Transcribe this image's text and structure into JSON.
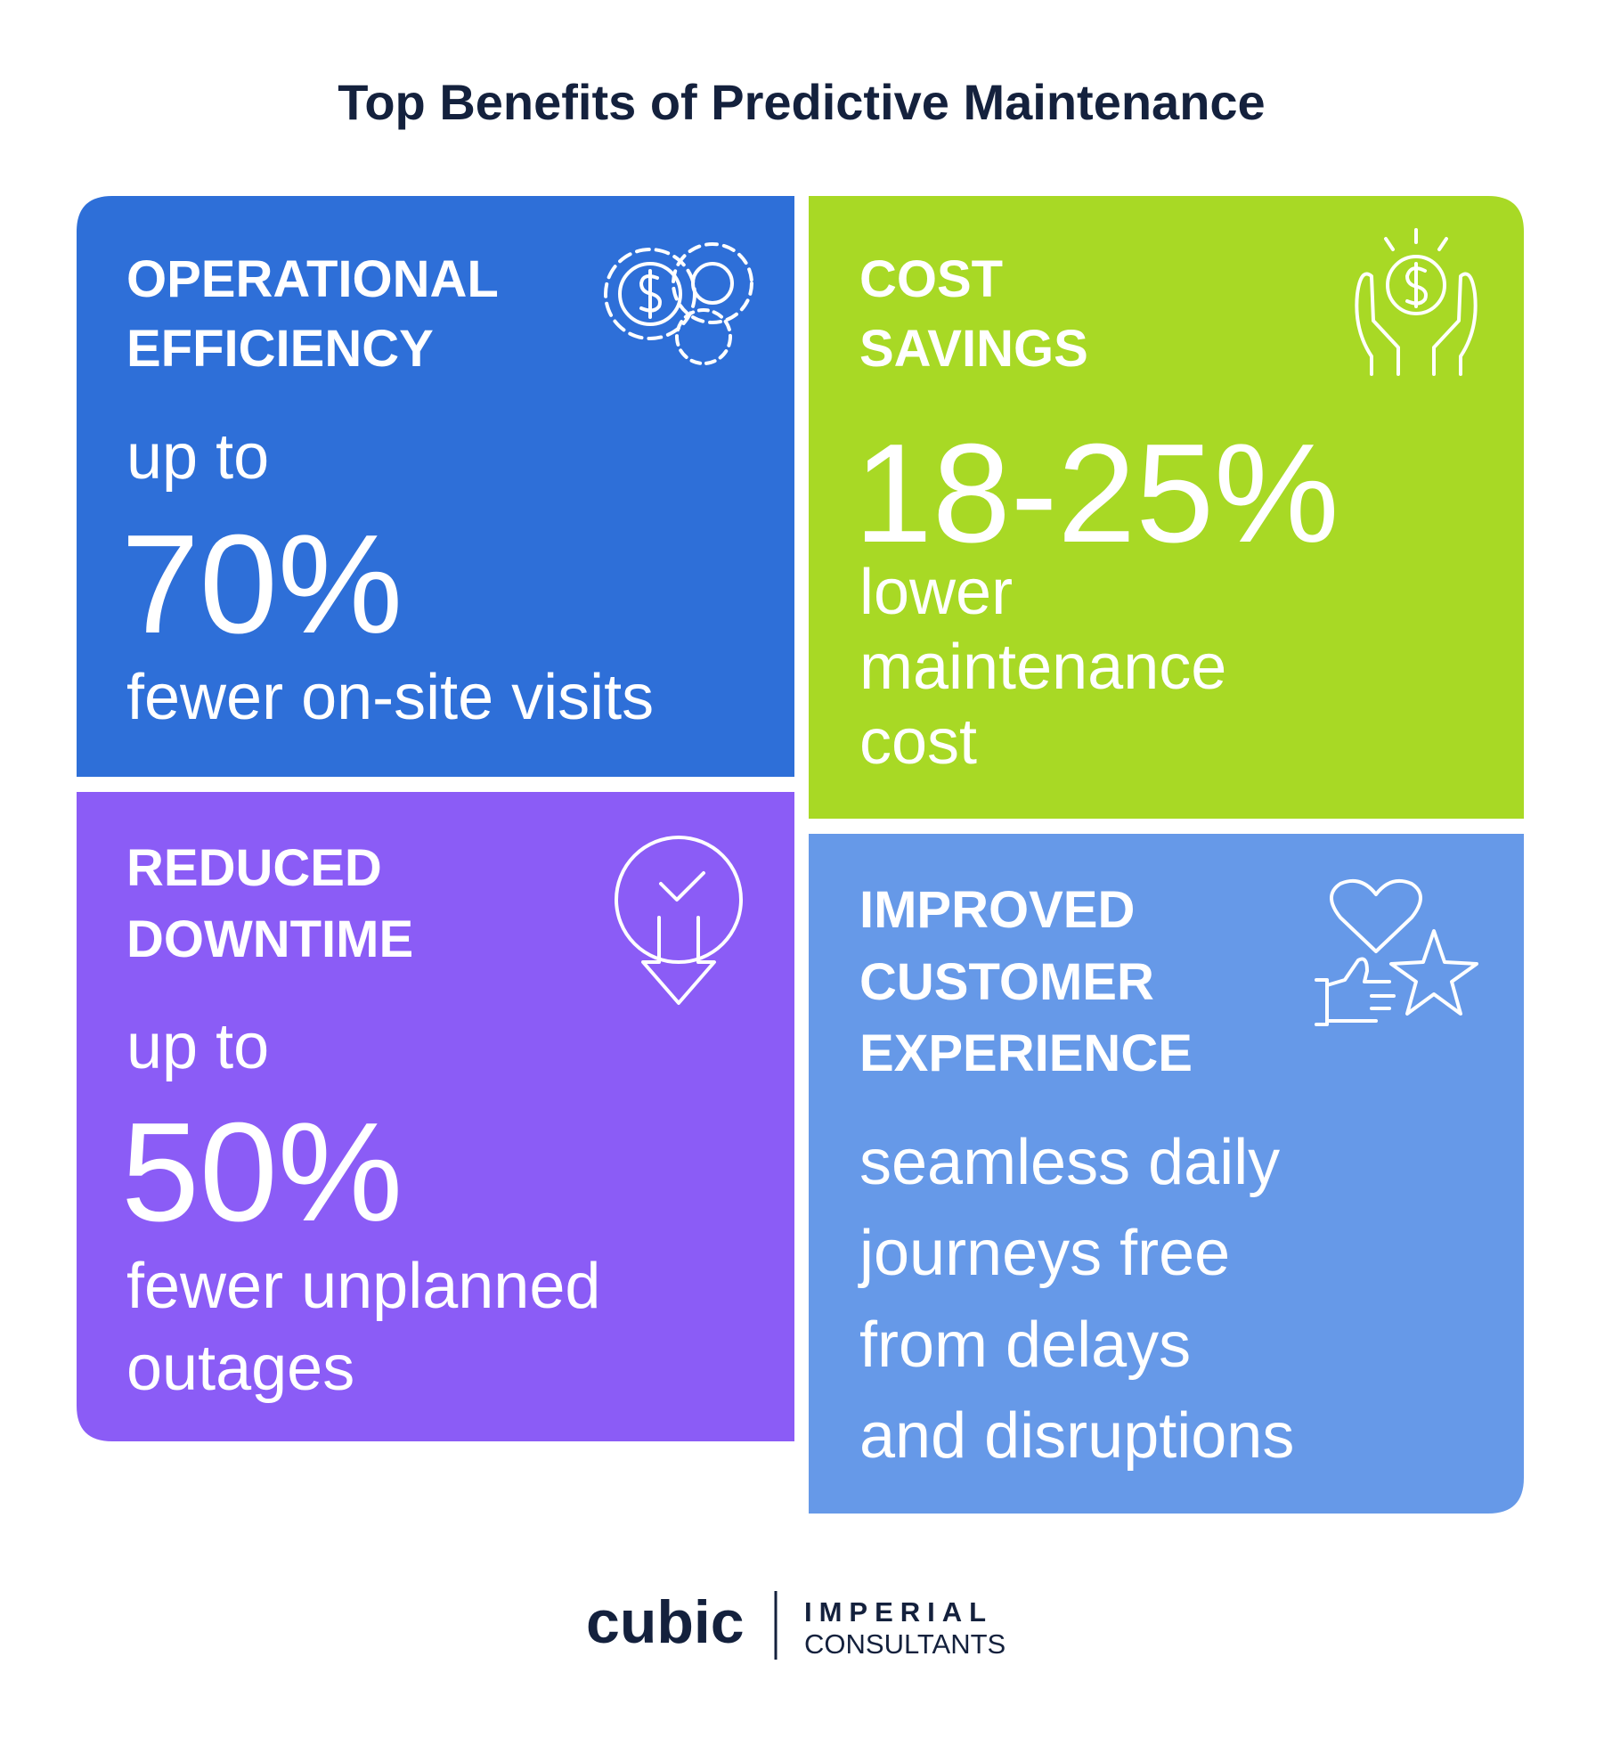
{
  "title": "Top Benefits of Predictive Maintenance",
  "cards": [
    {
      "heading": [
        "OPERATIONAL",
        "EFFICIENCY"
      ],
      "prefix": "up to",
      "stat": "70%",
      "description": [
        "fewer on-site visits"
      ]
    },
    {
      "heading": [
        "COST",
        "SAVINGS"
      ],
      "stat": "18-25%",
      "description": [
        "lower",
        "maintenance",
        "cost"
      ]
    },
    {
      "heading": [
        "REDUCED",
        "DOWNTIME"
      ],
      "prefix": "up to",
      "stat": "50%",
      "description": [
        "fewer unplanned",
        "outages"
      ]
    },
    {
      "heading": [
        "IMPROVED",
        "CUSTOMER",
        "EXPERIENCE"
      ],
      "description": [
        "seamless daily",
        "journeys free",
        "from delays",
        "and disruptions"
      ]
    }
  ],
  "footer": {
    "brand": "cubic",
    "partner_line1": "IMPERIAL",
    "partner_line2": "CONSULTANTS"
  }
}
